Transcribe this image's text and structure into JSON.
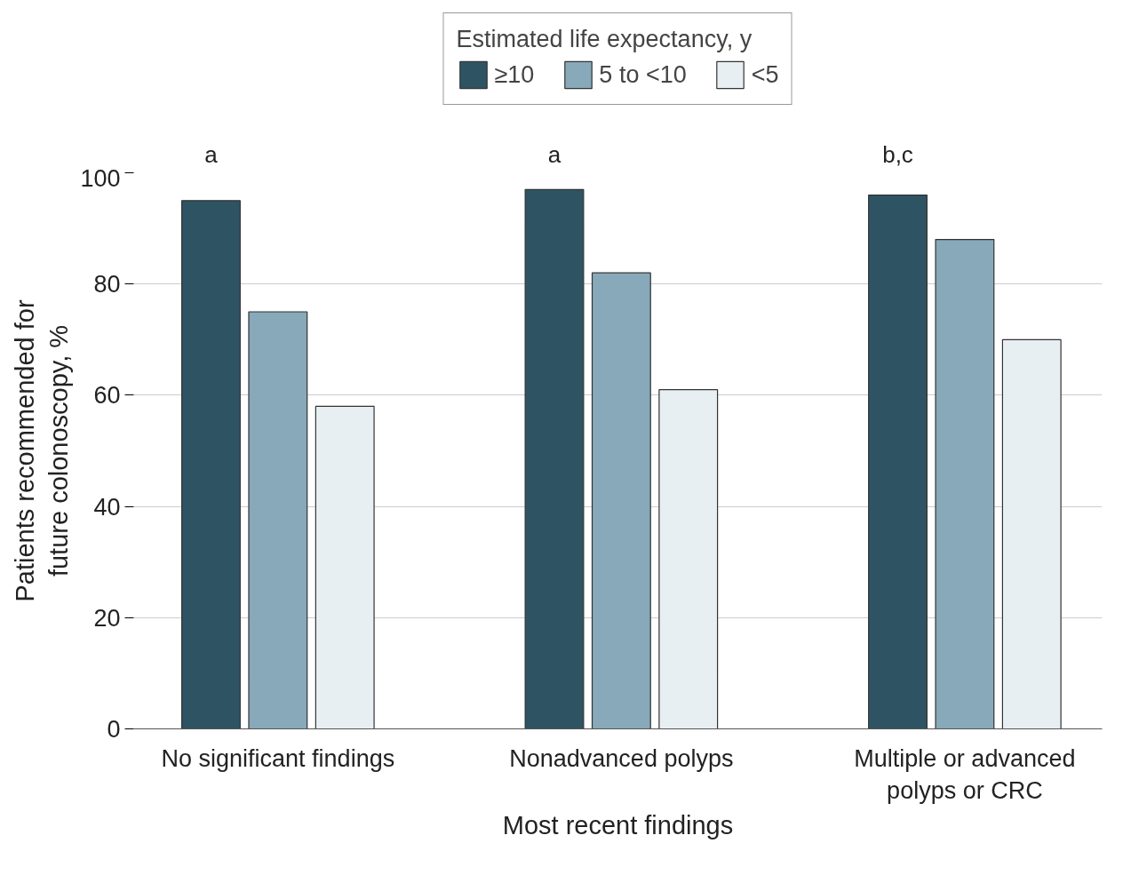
{
  "chart_data": {
    "type": "bar",
    "xlabel": "Most recent findings",
    "ylabel": "Patients recommended for future colonoscopy, %",
    "legend_title": "Estimated life expectancy, y",
    "categories": [
      "No significant findings",
      "Nonadvanced polyps",
      "Multiple or advanced polyps or CRC"
    ],
    "series": [
      {
        "name": "≥10",
        "color": "#2e5464",
        "values": [
          95,
          97,
          96
        ]
      },
      {
        "name": "5 to <10",
        "color": "#87a9b9",
        "values": [
          75,
          82,
          88
        ]
      },
      {
        "name": "<5",
        "color": "#e8eff3",
        "values": [
          58,
          61,
          70
        ]
      }
    ],
    "annotations": [
      "a",
      "a",
      "b,c"
    ],
    "ylim": [
      0,
      100
    ],
    "yticks": [
      0,
      20,
      40,
      60,
      80,
      100
    ],
    "grid": "y",
    "legend": "top"
  }
}
